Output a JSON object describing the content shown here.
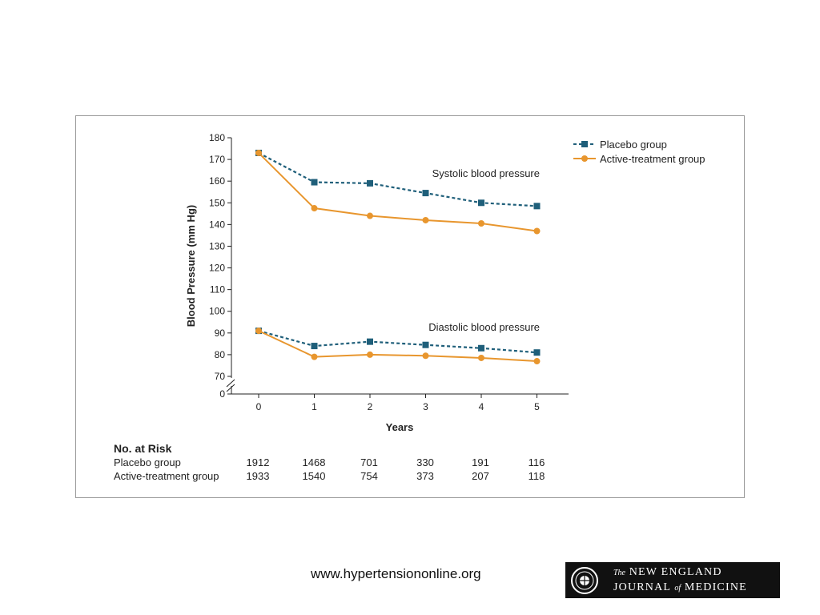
{
  "chart_data": {
    "type": "line",
    "xlabel": "Years",
    "ylabel": "Blood Pressure (mm Hg)",
    "x": [
      0,
      1,
      2,
      3,
      4,
      5
    ],
    "ylim": [
      70,
      180
    ],
    "yticks": [
      0,
      70,
      80,
      90,
      100,
      110,
      120,
      130,
      140,
      150,
      160,
      170,
      180
    ],
    "axis_break": true,
    "grid": false,
    "legend_position": "top-right",
    "series": [
      {
        "name": "Placebo group",
        "group": "systolic",
        "values": [
          173,
          159.5,
          159,
          154.5,
          150,
          148.5
        ],
        "color": "#1f5f7a",
        "style": "dashed",
        "marker": "square"
      },
      {
        "name": "Active-treatment group",
        "group": "systolic",
        "values": [
          173,
          147.5,
          144,
          142,
          140.5,
          137
        ],
        "color": "#e8962e",
        "style": "solid",
        "marker": "circle"
      },
      {
        "name": "Placebo group",
        "group": "diastolic",
        "values": [
          91,
          84,
          86,
          84.5,
          83,
          81
        ],
        "color": "#1f5f7a",
        "style": "dashed",
        "marker": "square"
      },
      {
        "name": "Active-treatment group",
        "group": "diastolic",
        "values": [
          91,
          79,
          80,
          79.5,
          78.5,
          77
        ],
        "color": "#e8962e",
        "style": "solid",
        "marker": "circle"
      }
    ],
    "annotations": [
      "Systolic blood pressure",
      "Diastolic blood pressure"
    ],
    "legend": [
      "Placebo group",
      "Active-treatment group"
    ]
  },
  "risk_table": {
    "title": "No. at Risk",
    "rows": [
      {
        "label": "Placebo group",
        "values": [
          "1912",
          "1468",
          "701",
          "330",
          "191",
          "116"
        ]
      },
      {
        "label": "Active-treatment group",
        "values": [
          "1933",
          "1540",
          "754",
          "373",
          "207",
          "118"
        ]
      }
    ]
  },
  "footer": {
    "url": "www.hypertensiononline.org",
    "logo_line1_small": "The",
    "logo_line1": "NEW ENGLAND",
    "logo_line2_a": "JOURNAL",
    "logo_line2_small": "of",
    "logo_line2_b": "MEDICINE"
  }
}
